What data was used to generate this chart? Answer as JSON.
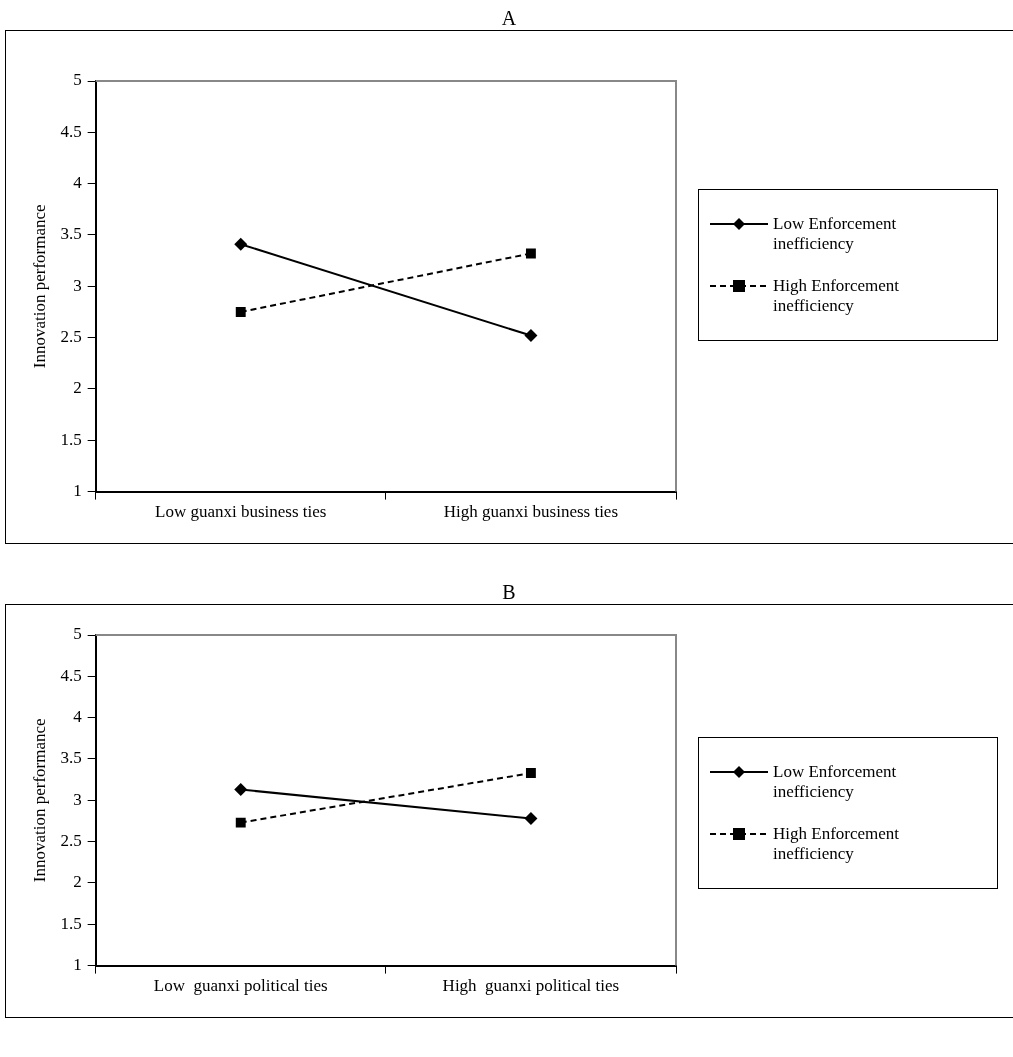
{
  "chart_data": [
    {
      "type": "line",
      "title": "A",
      "ylabel": "Innovation performance",
      "categories": [
        "Low guanxi business ties",
        "High guanxi business ties"
      ],
      "ylim": [
        1,
        5
      ],
      "yticks": [
        1,
        1.5,
        2,
        2.5,
        3,
        3.5,
        4,
        4.5,
        5
      ],
      "grid": false,
      "legend": "right",
      "series": [
        {
          "name": "Low Enforcement inefficiency",
          "color": "#000000",
          "marker": "diamond",
          "line_style": "solid",
          "values": [
            3.41,
            2.52
          ]
        },
        {
          "name": "High Enforcement inefficiency",
          "color": "#000000",
          "marker": "square",
          "line_style": "dashed",
          "values": [
            2.75,
            3.32
          ]
        }
      ]
    },
    {
      "type": "line",
      "title": "B",
      "ylabel": "Innovation performance",
      "categories": [
        "Low  guanxi political ties",
        "High  guanxi political ties"
      ],
      "ylim": [
        1,
        5
      ],
      "yticks": [
        1,
        1.5,
        2,
        2.5,
        3,
        3.5,
        4,
        4.5,
        5
      ],
      "grid": false,
      "legend": "right",
      "series": [
        {
          "name": "Low Enforcement inefficiency",
          "color": "#000000",
          "marker": "diamond",
          "line_style": "solid",
          "values": [
            3.13,
            2.78
          ]
        },
        {
          "name": "High Enforcement inefficiency",
          "color": "#000000",
          "marker": "square",
          "line_style": "dashed",
          "values": [
            2.73,
            3.33
          ]
        }
      ]
    }
  ]
}
